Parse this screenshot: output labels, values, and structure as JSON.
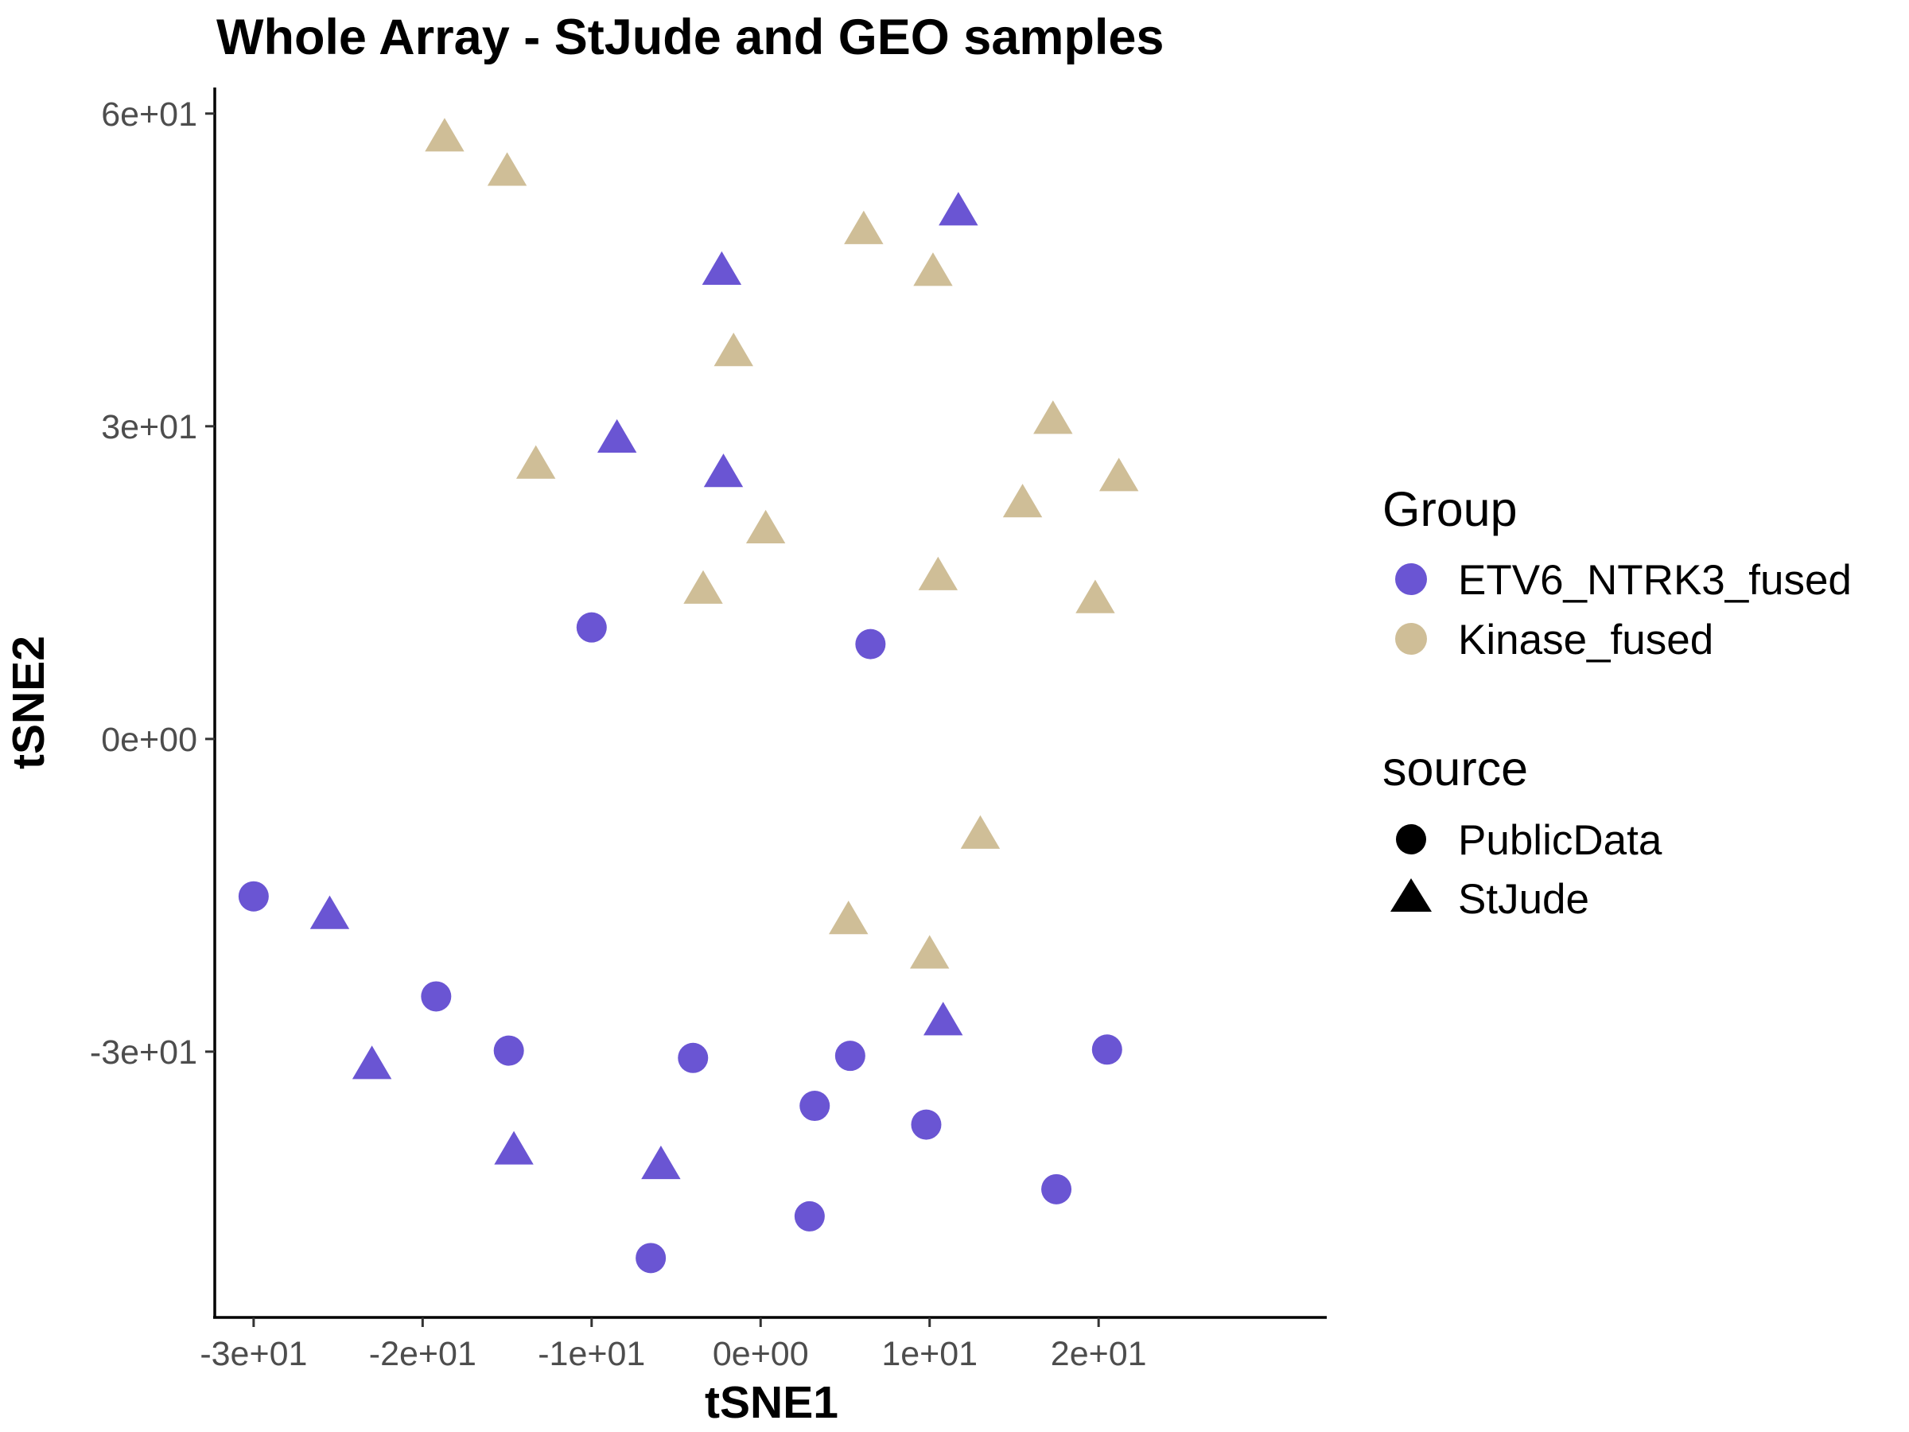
{
  "chart_data": {
    "type": "scatter",
    "title": "Whole Array - StJude and GEO samples",
    "xlabel": "tSNE1",
    "ylabel": "tSNE2",
    "xlim": [
      -32.3,
      33.5
    ],
    "ylim": [
      -55.5,
      62.5
    ],
    "xticks": [
      {
        "value": -30,
        "label": "-3e+01"
      },
      {
        "value": -20,
        "label": "-2e+01"
      },
      {
        "value": -10,
        "label": "-1e+01"
      },
      {
        "value": 0,
        "label": "0e+00"
      },
      {
        "value": 10,
        "label": "1e+01"
      },
      {
        "value": 20,
        "label": "2e+01"
      }
    ],
    "yticks": [
      {
        "value": 60,
        "label": "6e+01"
      },
      {
        "value": 30,
        "label": "3e+01"
      },
      {
        "value": 0,
        "label": "0e+00"
      },
      {
        "value": -30,
        "label": "-3e+01"
      }
    ],
    "grid": false,
    "legend_position": "right",
    "colors": {
      "ETV6_NTRK3_fused": "#6a55d3",
      "Kinase_fused": "#cfbe97"
    },
    "legends": [
      {
        "title": "Group",
        "type": "color",
        "entries": [
          "ETV6_NTRK3_fused",
          "Kinase_fused"
        ]
      },
      {
        "title": "source",
        "type": "shape",
        "entries": [
          {
            "label": "PublicData",
            "shape": "circle"
          },
          {
            "label": "StJude",
            "shape": "triangle"
          }
        ]
      }
    ],
    "series": [
      {
        "name": "ETV6_NTRK3_fused",
        "color": "#6a55d3",
        "points": [
          {
            "x": -30.0,
            "y": -15.1,
            "source": "PublicData"
          },
          {
            "x": -19.2,
            "y": -24.7,
            "source": "PublicData"
          },
          {
            "x": -14.9,
            "y": -29.9,
            "source": "PublicData"
          },
          {
            "x": -10.0,
            "y": 10.7,
            "source": "PublicData"
          },
          {
            "x": -6.5,
            "y": -49.8,
            "source": "PublicData"
          },
          {
            "x": -4.0,
            "y": -30.6,
            "source": "PublicData"
          },
          {
            "x": 2.9,
            "y": -45.8,
            "source": "PublicData"
          },
          {
            "x": 3.2,
            "y": -35.2,
            "source": "PublicData"
          },
          {
            "x": 5.3,
            "y": -30.4,
            "source": "PublicData"
          },
          {
            "x": 6.5,
            "y": 9.1,
            "source": "PublicData"
          },
          {
            "x": 9.8,
            "y": -37.0,
            "source": "PublicData"
          },
          {
            "x": 17.5,
            "y": -43.2,
            "source": "PublicData"
          },
          {
            "x": 20.5,
            "y": -29.8,
            "source": "PublicData"
          },
          {
            "x": -25.5,
            "y": -17.0,
            "source": "StJude"
          },
          {
            "x": -23.0,
            "y": -31.4,
            "source": "StJude"
          },
          {
            "x": -14.6,
            "y": -39.6,
            "source": "StJude"
          },
          {
            "x": -8.5,
            "y": 28.7,
            "source": "StJude"
          },
          {
            "x": -5.9,
            "y": -41.0,
            "source": "StJude"
          },
          {
            "x": -2.3,
            "y": 44.8,
            "source": "StJude"
          },
          {
            "x": -2.2,
            "y": 25.4,
            "source": "StJude"
          },
          {
            "x": 10.8,
            "y": -27.2,
            "source": "StJude"
          },
          {
            "x": 11.7,
            "y": 50.5,
            "source": "StJude"
          }
        ]
      },
      {
        "name": "Kinase_fused",
        "color": "#cfbe97",
        "points": [
          {
            "x": -18.7,
            "y": 57.6,
            "source": "StJude"
          },
          {
            "x": -15.0,
            "y": 54.3,
            "source": "StJude"
          },
          {
            "x": -13.3,
            "y": 26.2,
            "source": "StJude"
          },
          {
            "x": -3.4,
            "y": 14.2,
            "source": "StJude"
          },
          {
            "x": -1.6,
            "y": 37.0,
            "source": "StJude"
          },
          {
            "x": 0.3,
            "y": 20.0,
            "source": "StJude"
          },
          {
            "x": 5.2,
            "y": -17.5,
            "source": "StJude"
          },
          {
            "x": 6.1,
            "y": 48.7,
            "source": "StJude"
          },
          {
            "x": 10.0,
            "y": -20.8,
            "source": "StJude"
          },
          {
            "x": 10.2,
            "y": 44.7,
            "source": "StJude"
          },
          {
            "x": 10.5,
            "y": 15.5,
            "source": "StJude"
          },
          {
            "x": 13.0,
            "y": -9.3,
            "source": "StJude"
          },
          {
            "x": 15.5,
            "y": 22.5,
            "source": "StJude"
          },
          {
            "x": 17.3,
            "y": 30.5,
            "source": "StJude"
          },
          {
            "x": 19.8,
            "y": 13.3,
            "source": "StJude"
          },
          {
            "x": 21.2,
            "y": 25.0,
            "source": "StJude"
          }
        ]
      }
    ]
  }
}
